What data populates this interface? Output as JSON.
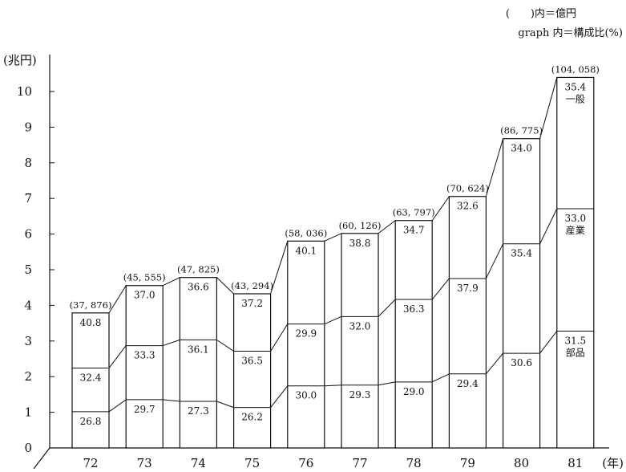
{
  "notes": {
    "line1": "(　　)内＝億円",
    "line2": "graph 内＝構成比(%)"
  },
  "chart_data": {
    "type": "bar",
    "stacked": true,
    "ylabel": "(兆円)",
    "xlabel": "(年)",
    "ylim": [
      0,
      10.5
    ],
    "yticks": [
      "0",
      "1",
      "2",
      "3",
      "4",
      "5",
      "6",
      "7",
      "8",
      "9",
      "10"
    ],
    "categories": [
      "72",
      "73",
      "74",
      "75",
      "76",
      "77",
      "78",
      "79",
      "80",
      "81"
    ],
    "totals": [
      3.7876,
      4.5555,
      4.7825,
      4.3294,
      5.8036,
      6.0126,
      6.3797,
      7.0624,
      8.6775,
      10.4058
    ],
    "total_labels": [
      "(37, 876)",
      "(45, 555)",
      "(47, 825)",
      "(43, 294)",
      "(58, 036)",
      "(60, 126)",
      "(63, 797)",
      "(70, 624)",
      "(86, 775)",
      "(104, 058)"
    ],
    "series": [
      {
        "name": "部品",
        "shares": [
          26.8,
          29.7,
          27.3,
          26.2,
          30.0,
          29.3,
          29.0,
          29.4,
          30.6,
          31.5
        ],
        "labels": [
          "26.8",
          "29.7",
          "27.3",
          "26.2",
          "30.0",
          "29.3",
          "29.0",
          "29.4",
          "30.6",
          "31.5"
        ]
      },
      {
        "name": "産業",
        "shares": [
          32.4,
          33.3,
          36.1,
          36.5,
          29.9,
          32.0,
          36.3,
          37.9,
          35.4,
          33.0
        ],
        "labels": [
          "32.4",
          "33.3",
          "36.1",
          "36.5",
          "29.9",
          "32.0",
          "36.3",
          "37.9",
          "35.4",
          "33.0"
        ]
      },
      {
        "name": "一般",
        "shares": [
          40.8,
          37.0,
          36.6,
          37.2,
          40.1,
          38.8,
          34.7,
          32.6,
          34.0,
          35.4
        ],
        "labels": [
          "40.8",
          "37.0",
          "36.6",
          "37.2",
          "40.1",
          "38.8",
          "34.7",
          "32.6",
          "34.0",
          "35.4"
        ]
      }
    ]
  }
}
